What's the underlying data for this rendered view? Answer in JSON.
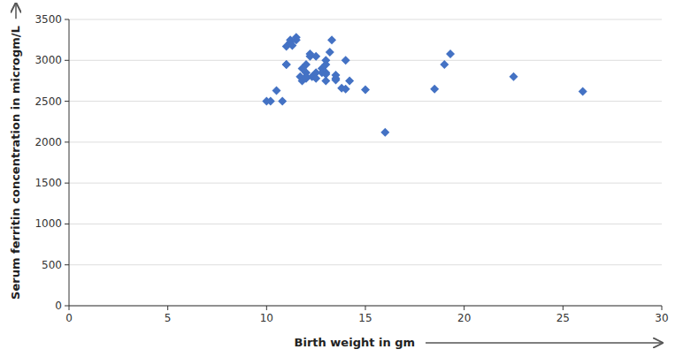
{
  "chart_data": {
    "type": "scatter",
    "x": [
      10,
      10.2,
      10.5,
      10.8,
      11,
      11,
      11,
      11.2,
      11.2,
      11.3,
      11.5,
      11.5,
      11.7,
      11.8,
      11.8,
      12,
      12,
      12,
      12,
      12,
      12.2,
      12.2,
      12.3,
      12.5,
      12.5,
      12.5,
      12.8,
      12.8,
      13,
      13,
      13,
      13,
      13,
      13.2,
      13.3,
      13.5,
      13.5,
      13.5,
      13.8,
      14,
      14,
      14.2,
      15,
      16,
      18.5,
      19,
      19.3,
      22.5,
      26
    ],
    "values": [
      2500,
      2500,
      2630,
      2500,
      2950,
      2950,
      3170,
      3220,
      3250,
      3180,
      3250,
      3280,
      2800,
      2900,
      2750,
      2950,
      2850,
      2800,
      2800,
      2780,
      3050,
      3080,
      2800,
      3050,
      2850,
      2780,
      2900,
      2850,
      2850,
      3000,
      2950,
      2830,
      2750,
      3100,
      3250,
      2780,
      2820,
      2760,
      2660,
      2650,
      3000,
      2750,
      2640,
      2120,
      2650,
      2950,
      3080,
      2800,
      2620
    ],
    "color": "#4472C4",
    "marker": "diamond",
    "xlim": [
      0,
      30
    ],
    "ylim": [
      0,
      3500
    ],
    "xticks": [
      0,
      5,
      10,
      15,
      20,
      25,
      30
    ],
    "yticks": [
      0,
      500,
      1000,
      1500,
      2000,
      2500,
      3000,
      3500
    ],
    "xlabel": "Birth weight in gm",
    "ylabel": "Serum ferritin concentration in microgm/L",
    "grid": true
  }
}
